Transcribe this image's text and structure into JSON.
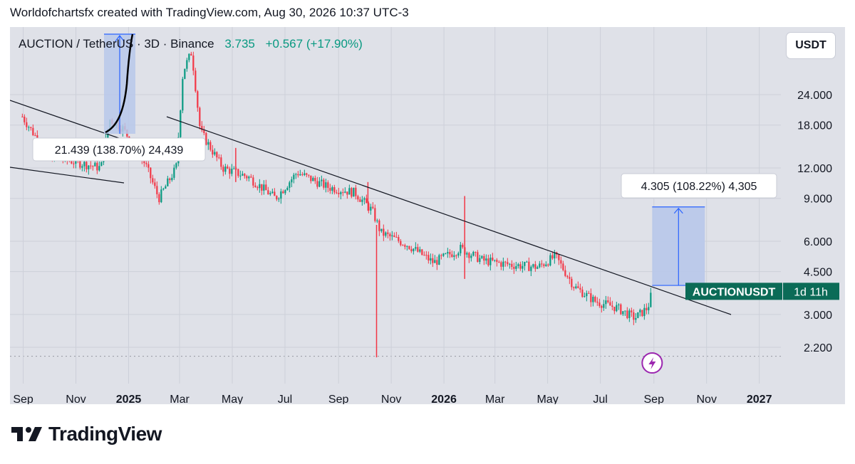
{
  "caption": "Worldofchartsfx created with TradingView.com, Aug 30, 2026 10:37 UTC-3",
  "header": {
    "symbol": "AUCTION / TetherUS · 3D · Binance",
    "last_price": "3.735",
    "change": "+0.567 (+17.90%)"
  },
  "currency_button": "USDT",
  "brand": "TradingView",
  "colors": {
    "up": "#089981",
    "down": "#f23645",
    "background": "#dfe1e8",
    "projection_fill": "#b8c8ea",
    "projection_line": "#2962ff",
    "trendline": "#131722"
  },
  "chart_data": {
    "type": "candlestick",
    "y_scale": "log",
    "y_ticks": [
      "24.000",
      "18.000",
      "12.000",
      "9.000",
      "6.000",
      "4.500",
      "3.000",
      "2.200"
    ],
    "x_ticks": [
      "Sep",
      "Nov",
      "2025",
      "Mar",
      "May",
      "Jul",
      "Sep",
      "Nov",
      "2026",
      "Mar",
      "May",
      "Jul",
      "Sep",
      "Nov",
      "2027"
    ],
    "series": [
      {
        "values": [
          {
            "date": "2024-08-31",
            "value": 19.5
          },
          {
            "date": "2024-09-30",
            "value": 13.5
          },
          {
            "date": "2024-11-30",
            "value": 12.0
          },
          {
            "date": "2024-12-10",
            "value": 19.0
          },
          {
            "date": "2024-12-25",
            "value": 17.5
          },
          {
            "date": "2025-01-20",
            "value": 12.5
          },
          {
            "date": "2025-02-05",
            "value": 9.0
          },
          {
            "date": "2025-02-25",
            "value": 12.0
          },
          {
            "date": "2025-03-05",
            "value": 30.0
          },
          {
            "date": "2025-03-15",
            "value": 36.0
          },
          {
            "date": "2025-03-25",
            "value": 17.0
          },
          {
            "date": "2025-04-20",
            "value": 12.0
          },
          {
            "date": "2025-05-20",
            "value": 11.0
          },
          {
            "date": "2025-06-20",
            "value": 9.0
          },
          {
            "date": "2025-07-15",
            "value": 11.5
          },
          {
            "date": "2025-08-20",
            "value": 10.0
          },
          {
            "date": "2025-09-20",
            "value": 9.5
          },
          {
            "date": "2025-10-10",
            "value": 8.0
          },
          {
            "date": "2025-10-20",
            "value": 6.5
          },
          {
            "date": "2025-11-20",
            "value": 5.8
          },
          {
            "date": "2025-12-20",
            "value": 4.9
          },
          {
            "date": "2026-01-20",
            "value": 5.6
          },
          {
            "date": "2026-02-15",
            "value": 5.0
          },
          {
            "date": "2026-03-20",
            "value": 4.8
          },
          {
            "date": "2026-04-20",
            "value": 4.7
          },
          {
            "date": "2026-05-10",
            "value": 5.2
          },
          {
            "date": "2026-06-01",
            "value": 3.9
          },
          {
            "date": "2026-06-25",
            "value": 3.4
          },
          {
            "date": "2026-07-20",
            "value": 3.2
          },
          {
            "date": "2026-08-10",
            "value": 2.9
          },
          {
            "date": "2026-08-25",
            "value": 3.2
          },
          {
            "date": "2026-08-30",
            "value": 3.735
          }
        ]
      }
    ],
    "wicks": [
      {
        "date": "2025-10-15",
        "low": 2.0,
        "high": 7.0
      },
      {
        "date": "2026-01-25",
        "low": 4.2,
        "high": 9.2
      },
      {
        "date": "2025-05-05",
        "low": 10.5,
        "high": 14.5
      },
      {
        "date": "2025-10-05",
        "low": 8.0,
        "high": 10.5
      }
    ],
    "annotations": {
      "left_measure": "21.439 (138.70%) 24,439",
      "right_measure": "4.305 (108.22%) 4,305",
      "symbol_tag": "AUCTIONUSDT",
      "countdown": "1d 11h"
    },
    "projection": {
      "start_date": "2026-08-30",
      "end_date": "2026-10-30",
      "low": 3.95,
      "high": 8.3
    }
  }
}
